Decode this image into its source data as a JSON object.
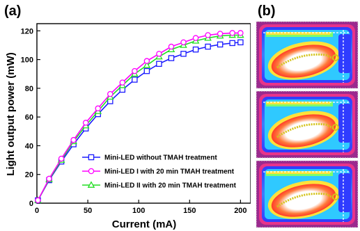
{
  "panel_labels": {
    "a": "(a)",
    "b": "(b)"
  },
  "chart_data": {
    "type": "line",
    "xlabel": "Current (mA)",
    "ylabel": "Light output power (mW)",
    "xlim": [
      0,
      210
    ],
    "ylim": [
      0,
      125
    ],
    "x_ticks": [
      0,
      50,
      100,
      150,
      200
    ],
    "y_ticks": [
      0,
      20,
      40,
      60,
      80,
      100,
      120
    ],
    "legend_position": "bottom-right",
    "grid": false,
    "x": [
      1,
      12,
      24,
      36,
      48,
      60,
      72,
      84,
      96,
      108,
      120,
      132,
      144,
      156,
      168,
      180,
      192,
      200
    ],
    "series": [
      {
        "name": "Mini-LED without TMAH treatment",
        "color": "#1a1aff",
        "marker": "square",
        "values": [
          2,
          16,
          29,
          41,
          52,
          62,
          71,
          79,
          86,
          92,
          97,
          101,
          104,
          107,
          109,
          110.5,
          111.5,
          112
        ]
      },
      {
        "name": "Mini-LED I with 20 min TMAH treatment",
        "color": "#ff00ff",
        "marker": "circle",
        "values": [
          2,
          17,
          31,
          44,
          56,
          66,
          76,
          84,
          92,
          99,
          104,
          109,
          112,
          115,
          117,
          118,
          118.5,
          118.5
        ]
      },
      {
        "name": "Mini-LED II with 20 min TMAH treatment",
        "color": "#22dd22",
        "marker": "triangle",
        "values": [
          2,
          16.5,
          30,
          43,
          54,
          64,
          74,
          82,
          90,
          96,
          102,
          107,
          110,
          113,
          115,
          116.5,
          117,
          117
        ]
      }
    ]
  },
  "thermal_images": {
    "count": 3,
    "colors": {
      "background": "#9b2a8e",
      "outer": "#e8338a",
      "frame": "#3a3aff",
      "hot": "#ff5a2a",
      "core": "#ffffff",
      "trace": "#d4c31a",
      "border": "#d9d9d9"
    }
  }
}
